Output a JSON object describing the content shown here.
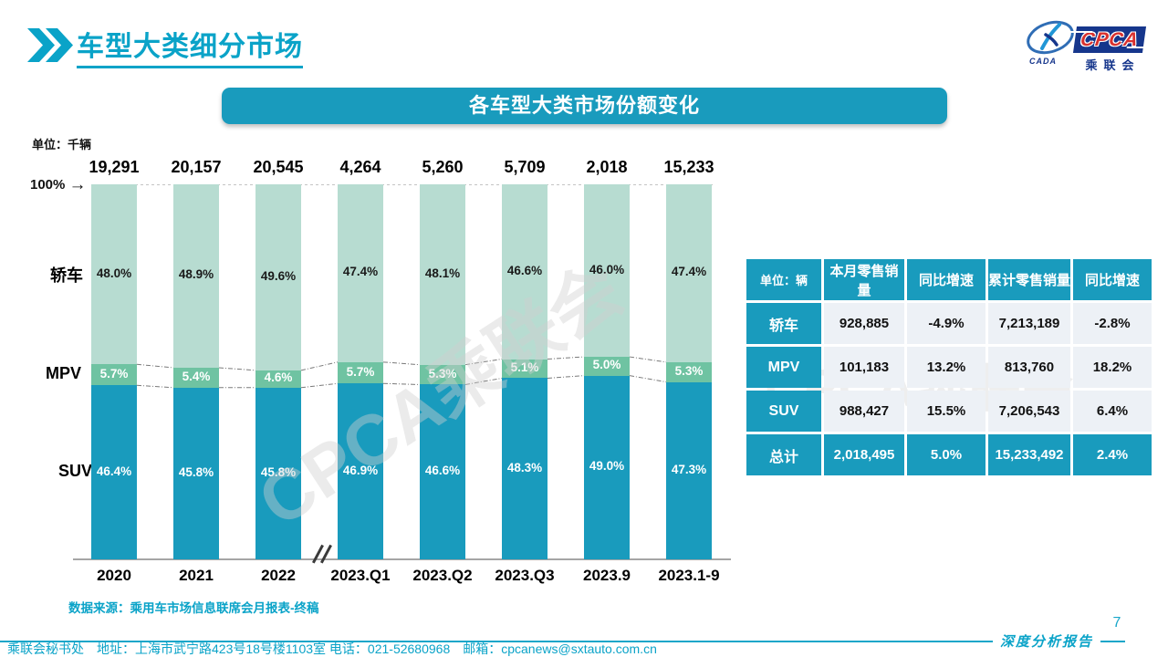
{
  "page": {
    "title": "车型大类细分市场",
    "page_number": "7",
    "report_label": "深度分析报告",
    "footer_contact": "乘联会秘书处　地址：上海市武宁路423号18号楼1103室 电话：021-52680968　邮箱：cpcanews@sxtauto.com.cn",
    "watermark": "CPCA乘联会"
  },
  "logo": {
    "acronym": "CPCA",
    "emblem_caption": "CADA",
    "org_name": "乘联会"
  },
  "banner": {
    "text": "各车型大类市场份额变化"
  },
  "chart_data": {
    "type": "bar",
    "stacked": true,
    "title": "各车型大类市场份额变化",
    "unit_label": "单位：千辆",
    "axis_100_label": "100%",
    "ylim": [
      0,
      100
    ],
    "grid": false,
    "legend_position": "left-of-bars",
    "categories": [
      "2020",
      "2021",
      "2022",
      "2023.Q1",
      "2023.Q2",
      "2023.Q3",
      "2023.9",
      "2023.1-9"
    ],
    "totals": [
      "19,291",
      "20,157",
      "20,545",
      "4,264",
      "5,260",
      "5,709",
      "2,018",
      "15,233"
    ],
    "axis_break_after_index": 2,
    "series": [
      {
        "name": "轿车",
        "values": [
          48.0,
          48.9,
          49.6,
          47.4,
          48.1,
          46.6,
          46.0,
          47.4
        ],
        "color": "#b7dcd1",
        "label_color": "#1a1a1a"
      },
      {
        "name": "MPV",
        "values": [
          5.7,
          5.4,
          4.6,
          5.7,
          5.3,
          5.1,
          5.0,
          5.3
        ],
        "color": "#6fc3a2",
        "label_color": "#ffffff"
      },
      {
        "name": "SUV",
        "values": [
          46.4,
          45.8,
          45.8,
          46.9,
          46.6,
          48.3,
          49.0,
          47.3
        ],
        "color": "#199bbd",
        "label_color": "#ffffff"
      }
    ],
    "source": "数据来源：乘用车市场信息联席会月报表-终稿"
  },
  "table": {
    "headers": [
      "单位：辆",
      "本月零售销量",
      "同比增速",
      "累计零售销量",
      "同比增速"
    ],
    "rows": [
      {
        "label": "轿车",
        "cells": [
          "928,885",
          "-4.9%",
          "7,213,189",
          "-2.8%"
        ],
        "highlight": false
      },
      {
        "label": "MPV",
        "cells": [
          "101,183",
          "13.2%",
          "813,760",
          "18.2%"
        ],
        "highlight": false
      },
      {
        "label": "SUV",
        "cells": [
          "988,427",
          "15.5%",
          "7,206,543",
          "6.4%"
        ],
        "highlight": false
      },
      {
        "label": "总计",
        "cells": [
          "2,018,495",
          "5.0%",
          "15,233,492",
          "2.4%"
        ],
        "highlight": true
      }
    ]
  },
  "colors": {
    "teal": "#199bbd",
    "accent_text": "#0aa3c8",
    "sedan_green": "#b7dcd1",
    "mpv_green": "#6fc3a2",
    "axis_gray": "#a6a6a6",
    "cell_bg": "#edf1f6",
    "logo_navy": "#16368c",
    "logo_red": "#d9312e"
  }
}
